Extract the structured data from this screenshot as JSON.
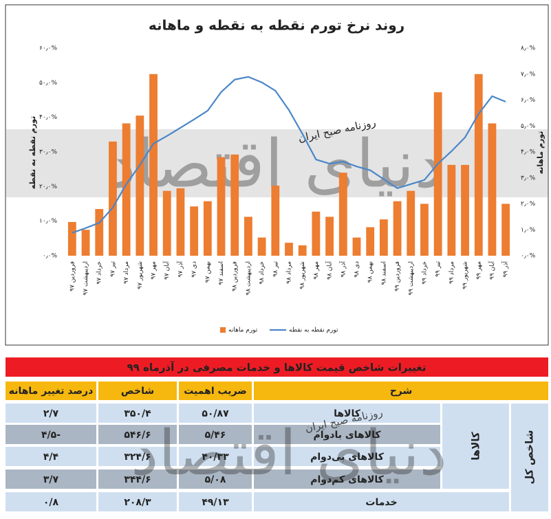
{
  "chart_data": {
    "type": "bar_line",
    "title": "روند نرخ تورم نقطه به نقطه و ماهانه",
    "categories": [
      "فروردین ۹۷",
      "اردیبهشت ۹۷",
      "خرداد ۹۷",
      "تیر ۹۷",
      "مرداد ۹۷",
      "شهریور ۹۷",
      "مهر ۹۷",
      "آبان ۹۷",
      "آذر ۹۷",
      "دی ۹۷",
      "بهمن ۹۷",
      "اسفند ۹۷",
      "فروردین ۹۸",
      "اردیبهشت ۹۸",
      "خرداد ۹۸",
      "تیر ۹۸",
      "مرداد ۹۸",
      "شهریور ۹۸",
      "مهر ۹۸",
      "آبان ۹۸",
      "آذر ۹۸",
      "دی ۹۸",
      "بهمن ۹۸",
      "اسفند ۹۸",
      "فروردین ۹۹",
      "اردیبهشت ۹۹",
      "خرداد ۹۹",
      "تیر ۹۹",
      "مرداد ۹۹",
      "شهریور ۹۹",
      "مهر ۹۹",
      "آبان ۹۹",
      "آذر ۹۹"
    ],
    "series": [
      {
        "name": "تورم ماهانه",
        "type": "bar",
        "axis": "y2",
        "color": "#ed7d31",
        "values": [
          1.3,
          1.0,
          1.8,
          4.4,
          5.1,
          5.4,
          7.0,
          2.5,
          2.6,
          1.9,
          2.1,
          3.8,
          3.9,
          1.5,
          0.7,
          2.7,
          0.5,
          0.4,
          1.7,
          1.5,
          3.2,
          0.7,
          1.1,
          1.4,
          2.1,
          2.5,
          2.0,
          6.3,
          3.5,
          3.5,
          7.0,
          5.1,
          2.0
        ]
      },
      {
        "name": "تورم نقطه به نقطه",
        "type": "line",
        "color": "#4a86c8",
        "values": [
          6.6,
          8.0,
          9.5,
          13.9,
          20.7,
          26.2,
          32.4,
          34.6,
          37.0,
          39.4,
          41.9,
          47.3,
          50.9,
          51.7,
          50.1,
          47.7,
          42.1,
          35.2,
          27.8,
          26.6,
          27.2,
          25.8,
          24.7,
          22.1,
          19.5,
          20.7,
          21.9,
          26.6,
          30.2,
          34.2,
          41.0,
          46.1,
          44.5
        ]
      }
    ],
    "ylabel": "تورم نقطه به نقطه",
    "y2label": "تورم ماهانه",
    "ylim": [
      0,
      60
    ],
    "yticks": [
      {
        "value": 0,
        "label": "۰٫۰%"
      },
      {
        "value": 10,
        "label": "۱۰٫۰%"
      },
      {
        "value": 20,
        "label": "۲۰٫۰%"
      },
      {
        "value": 30,
        "label": "۳۰٫۰%"
      },
      {
        "value": 40,
        "label": "۴۰٫۰%"
      },
      {
        "value": 50,
        "label": "۵۰٫۰%"
      },
      {
        "value": 60,
        "label": "۶۰٫۰%"
      }
    ],
    "y2lim": [
      0,
      8
    ],
    "y2ticks": [
      {
        "value": 0,
        "label": "۰٫۰%"
      },
      {
        "value": 1,
        "label": "۱٫۰%"
      },
      {
        "value": 2,
        "label": "۲٫۰%"
      },
      {
        "value": 3,
        "label": "۳٫۰%"
      },
      {
        "value": 4,
        "label": "۴٫۰%"
      },
      {
        "value": 5,
        "label": "۵٫۰%"
      },
      {
        "value": 6,
        "label": "۶٫۰%"
      },
      {
        "value": 7,
        "label": "۷٫۰%"
      },
      {
        "value": 8,
        "label": "۸٫۰%"
      }
    ],
    "grid": false,
    "legend": "bottom"
  },
  "watermark": "روزنامه صبح ایران",
  "logo": "دنیای اقتصاد",
  "table": {
    "title": "تغییرات شاخص قیمت کالاها و خدمات مصرفی در آذرماه ۹۹",
    "header": [
      "شرح",
      "ضریب اهمیت",
      "شاخص",
      "درصد تغییر ماهانه"
    ],
    "rows": [
      [
        "کالاها",
        "۵۰/۸۷",
        "۳۵۰/۴",
        "۲/۷"
      ],
      [
        "کالاهای بادوام",
        "۵/۴۶",
        "۵۴۶/۶",
        "-۴/۵"
      ],
      [
        "کالاهای بی‌دوام",
        "۴۰/۳۳",
        "۳۲۴/۶",
        "۴/۴"
      ],
      [
        "کالاهای کم‌دوام",
        "۵/۰۸",
        "۳۴۴/۶",
        "۳/۷"
      ],
      [
        "خدمات",
        "۴۹/۱۳",
        "۲۰۸/۳",
        "۰/۸"
      ]
    ],
    "group_label": "کالاها",
    "total_label": "شاخص کل"
  }
}
